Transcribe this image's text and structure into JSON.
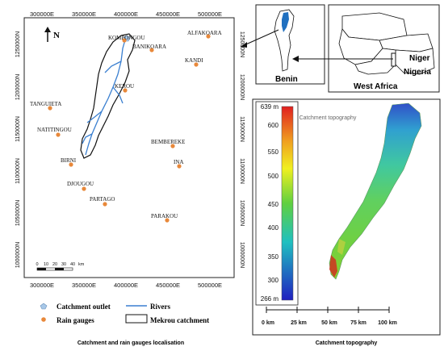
{
  "left_map": {
    "top_ticks": [
      "300000E",
      "350000E",
      "400000E",
      "450000E",
      "500000E"
    ],
    "bottom_ticks": [
      "300000E",
      "350000E",
      "400000E",
      "450000E",
      "500000E"
    ],
    "left_ticks": [
      "1250000N",
      "1200000N",
      "1150000N",
      "1100000N",
      "1050000N",
      "1000000N"
    ],
    "right_ticks": [
      "1250000N",
      "1200000N",
      "1150000N",
      "1100000N",
      "1050000N",
      "1000000N"
    ],
    "north": "N",
    "scale_labels": [
      "0",
      "10",
      "20",
      "30",
      "40",
      "km"
    ],
    "places": [
      {
        "name": "KOMPONGOU"
      },
      {
        "name": "BANIKOARA"
      },
      {
        "name": "ALFAKOARA"
      },
      {
        "name": "KANDI"
      },
      {
        "name": "KEROU"
      },
      {
        "name": "TANGUIETA"
      },
      {
        "name": "NATITINGOU"
      },
      {
        "name": "BEMBEREKE"
      },
      {
        "name": "BIRNI"
      },
      {
        "name": "INA"
      },
      {
        "name": "DJOUGOU"
      },
      {
        "name": "PARTAGO"
      },
      {
        "name": "PARAKOU"
      }
    ],
    "legend": {
      "outlet": "Catchment outlet",
      "rivers": "Rivers",
      "gauges": "Rain gauges",
      "catchment": "Mekrou catchment"
    },
    "caption": "Catchment and rain gauges localisation",
    "colors": {
      "gauge": "#e8883a",
      "river": "#3a7fd0",
      "outlet": "#a8c8e8"
    }
  },
  "inset": {
    "benin_label": "Benin",
    "west_africa_label": "West Africa",
    "niger_label": "Niger",
    "nigeria_label": "Nigeria"
  },
  "topo_map": {
    "caption": "Catchment topography",
    "colorbar_ticks": [
      "639 m",
      "600",
      "550",
      "500",
      "450",
      "400",
      "350",
      "300",
      "266 m"
    ],
    "scale_labels": [
      "0 km",
      "25 km",
      "50 km",
      "75 km",
      "100 km"
    ],
    "colors": {
      "high": "#e02020",
      "mid": "#40c040",
      "low": "#2030d0"
    }
  }
}
